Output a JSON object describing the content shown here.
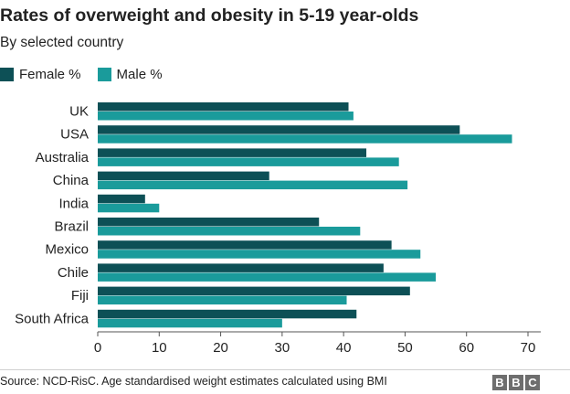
{
  "header": {
    "title": "Rates of overweight and obesity in 5-19 year-olds",
    "subtitle": "By selected country"
  },
  "footer": {
    "source": "Source: NCD-RisC. Age standardised weight estimates calculated using BMI",
    "logo_letters": [
      "B",
      "B",
      "C"
    ]
  },
  "colors": {
    "female": "#0d5056",
    "male": "#1a9b9b",
    "axis": "#555555",
    "text": "#222222"
  },
  "chart_data": {
    "type": "bar",
    "orientation": "horizontal",
    "title": "Rates of overweight and obesity in 5-19 year-olds",
    "subtitle": "By selected country",
    "categories": [
      "UK",
      "USA",
      "Australia",
      "China",
      "India",
      "Brazil",
      "Mexico",
      "Chile",
      "Fiji",
      "South Africa"
    ],
    "series": [
      {
        "name": "Female %",
        "values": [
          40.8,
          58.9,
          43.7,
          27.9,
          7.7,
          36.0,
          47.8,
          46.5,
          50.8,
          42.1
        ]
      },
      {
        "name": "Male %",
        "values": [
          41.6,
          67.4,
          49.0,
          50.4,
          10.0,
          42.7,
          52.5,
          55.0,
          40.5,
          30.0
        ]
      }
    ],
    "xlim": [
      0,
      70
    ],
    "xticks": [
      0,
      10,
      20,
      30,
      40,
      50,
      60,
      70
    ],
    "xlabel": "",
    "ylabel": "",
    "grid": false,
    "legend_position": "top-left"
  }
}
